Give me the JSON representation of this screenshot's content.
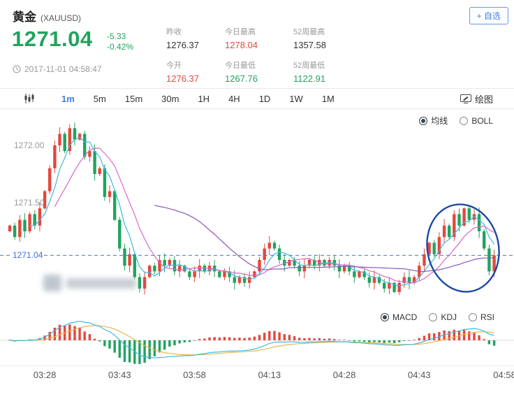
{
  "meta": {
    "title": "黄金",
    "symbol": "(XAUUSD)",
    "price": "1271.04",
    "change": "-5.33",
    "change_pct": "-0.42%",
    "timestamp": "2017-11-01 04:58:47",
    "watchlist_button": "+ 自选"
  },
  "stats": [
    {
      "label": "昨收",
      "value": "1276.37",
      "color": "#333333"
    },
    {
      "label": "今日最高",
      "value": "1278.04",
      "color": "#e3483d"
    },
    {
      "label": "52周最高",
      "value": "1357.58",
      "color": "#333333"
    },
    {
      "label": "今开",
      "value": "1276.37",
      "color": "#e3483d"
    },
    {
      "label": "今日最低",
      "value": "1267.76",
      "color": "#21a35e"
    },
    {
      "label": "52周最低",
      "value": "1122.91",
      "color": "#21a35e"
    }
  ],
  "toolbar": {
    "timeframes": [
      "1m",
      "5m",
      "15m",
      "30m",
      "1H",
      "4H",
      "1D",
      "1W",
      "1M"
    ],
    "active": "1m",
    "draw_label": "绘图"
  },
  "overlay_controls": {
    "options": [
      "均线",
      "BOLL"
    ],
    "selected": "均线"
  },
  "indicator_controls": {
    "options": [
      "MACD",
      "KDJ",
      "RSI"
    ],
    "selected": "MACD"
  },
  "chart_data": {
    "type": "candlestick",
    "symbol": "XAUUSD",
    "interval": "1m",
    "start_time": "03:21",
    "interval_minutes": 1,
    "first_open": 1271.25,
    "closes": [
      1271.3,
      1271.2,
      1271.35,
      1271.25,
      1271.4,
      1271.3,
      1271.45,
      1271.6,
      1271.8,
      1272.0,
      1272.1,
      1271.95,
      1272.15,
      1272.05,
      1272.1,
      1271.9,
      1271.95,
      1271.75,
      1271.8,
      1271.55,
      1271.6,
      1271.35,
      1271.1,
      1270.95,
      1271.05,
      1270.85,
      1270.75,
      1270.85,
      1270.95,
      1270.9,
      1271.0,
      1270.95,
      1271.0,
      1270.9,
      1270.95,
      1270.9,
      1270.85,
      1270.9,
      1270.95,
      1270.9,
      1270.95,
      1270.9,
      1270.85,
      1270.9,
      1270.85,
      1270.8,
      1270.85,
      1270.8,
      1270.85,
      1270.9,
      1271.0,
      1271.1,
      1271.15,
      1271.1,
      1271.0,
      1270.95,
      1271.0,
      1270.95,
      1270.9,
      1270.95,
      1271.0,
      1270.95,
      1271.0,
      1270.95,
      1271.0,
      1270.95,
      1270.9,
      1270.95,
      1270.9,
      1270.85,
      1270.9,
      1270.85,
      1270.8,
      1270.85,
      1270.8,
      1270.75,
      1270.8,
      1270.72,
      1270.8,
      1270.85,
      1270.8,
      1270.85,
      1270.95,
      1271.05,
      1271.15,
      1271.05,
      1271.2,
      1271.3,
      1271.2,
      1271.4,
      1271.3,
      1271.45,
      1271.35,
      1271.4,
      1271.25,
      1271.1,
      1270.9,
      1271.04
    ],
    "y_axis": {
      "labels": [
        "1272.00",
        "1271.50"
      ],
      "values": [
        1272.0,
        1271.5
      ],
      "current_price": 1271.04,
      "current_price_label": "1271.04"
    },
    "x_ticks": [
      "03:28",
      "03:43",
      "03:58",
      "04:13",
      "04:28",
      "04:43",
      "04:58"
    ],
    "x_tick_indices": [
      7,
      22,
      37,
      52,
      67,
      82,
      97
    ],
    "overlays": {
      "ma_periods": [
        5,
        10,
        30
      ],
      "ma_colors": [
        "#3fb9e0",
        "#d966cc",
        "#8856b8"
      ]
    },
    "colors": {
      "up": "#e3483d",
      "down": "#21a35e",
      "price_line": "#4a6fd4"
    },
    "indicator": {
      "type": "MACD",
      "dif_color": "#3fb9e0",
      "dea_color": "#e6b84a",
      "hist_up": "#e3483d",
      "hist_down": "#21a35e"
    },
    "annotation": {
      "shape": "ellipse",
      "color": "#1b4aa2",
      "note": "circled recent rally"
    }
  }
}
